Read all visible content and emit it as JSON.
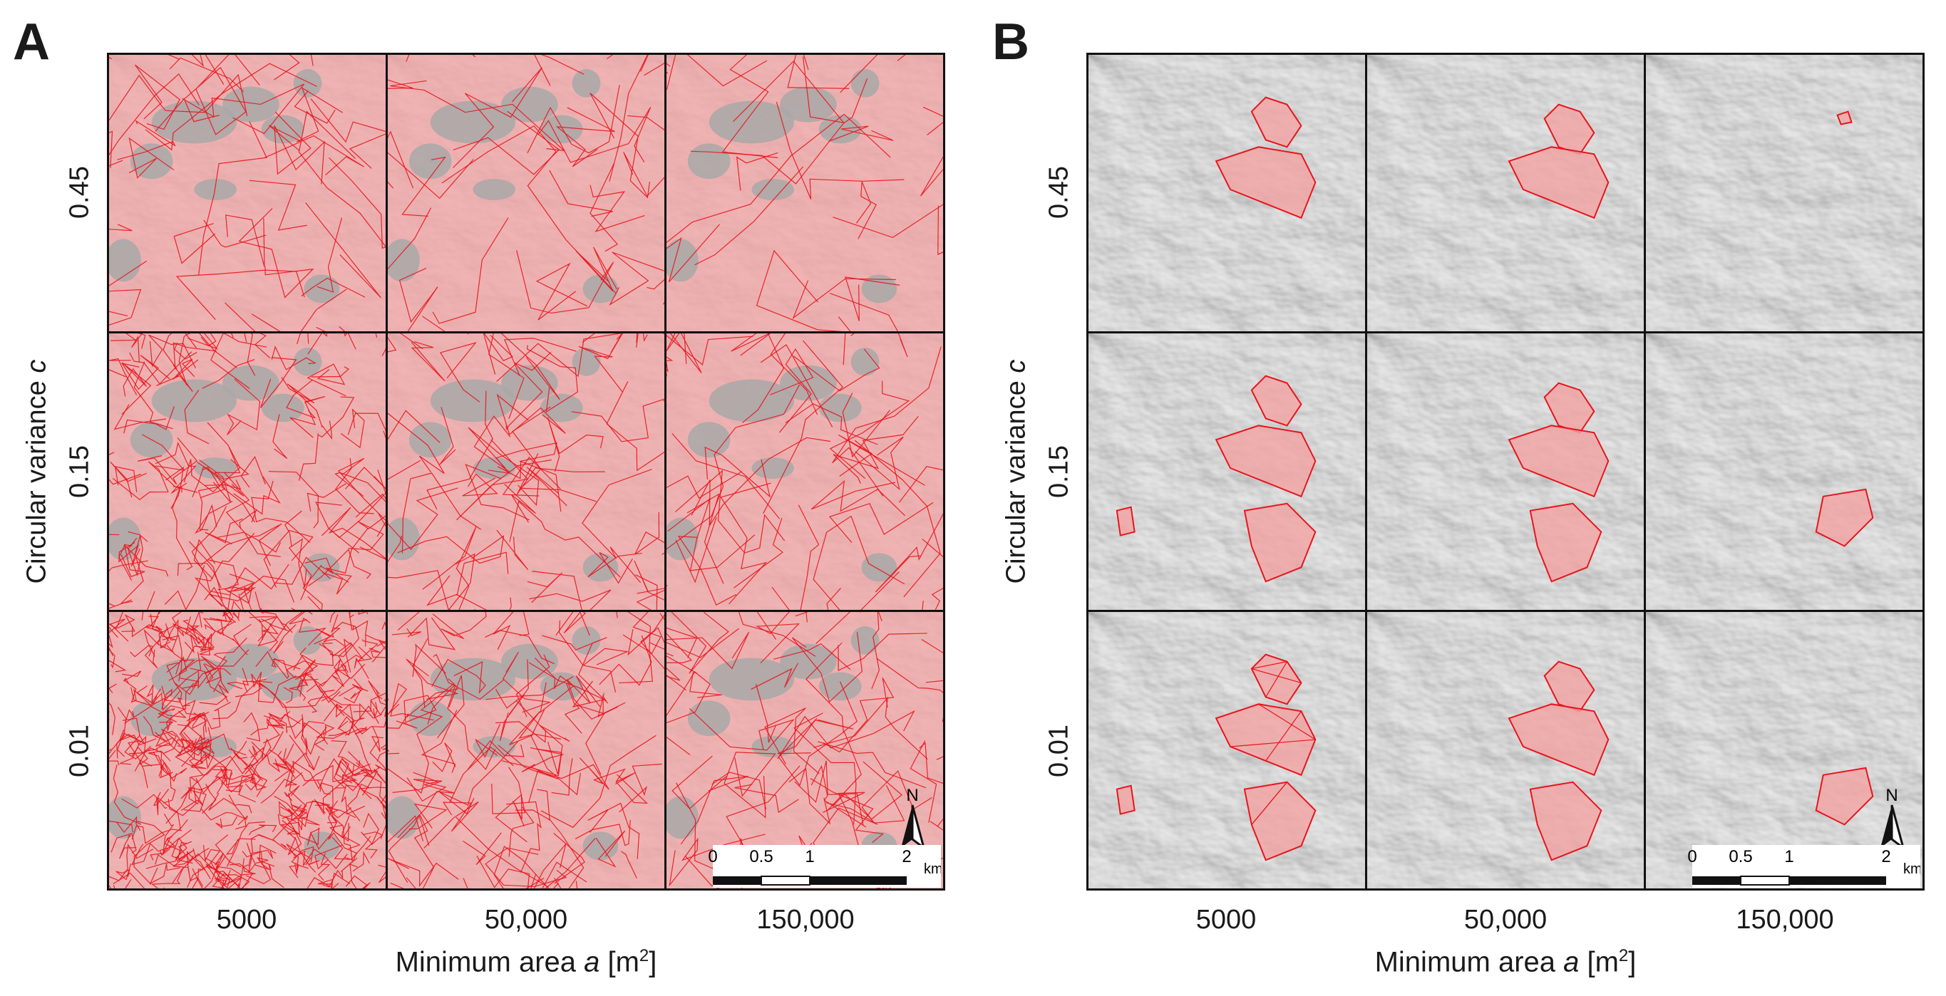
{
  "panels": [
    {
      "letter": "A",
      "style": "segments"
    },
    {
      "letter": "B",
      "style": "selected"
    }
  ],
  "y_axis": {
    "label_prefix": "Circular variance ",
    "label_var": "c",
    "ticks": [
      "0.45",
      "0.15",
      "0.01"
    ]
  },
  "x_axis": {
    "label_prefix": "Minimum area ",
    "label_var": "a",
    "label_unit_open": " [m",
    "label_sup": "2",
    "label_unit_close": "]",
    "ticks": [
      "5000",
      "50,000",
      "150,000"
    ]
  },
  "scale_bar": {
    "labels": [
      "0",
      "0.5",
      "1",
      "2"
    ],
    "unit": "km"
  },
  "north_label": "N",
  "colors": {
    "segment_fill": "#f4a3a3",
    "segment_line": "#e8141c",
    "hillshade_light": "#e6e6e6",
    "hillshade_dark": "#8e8e8e",
    "frame": "#111111"
  }
}
